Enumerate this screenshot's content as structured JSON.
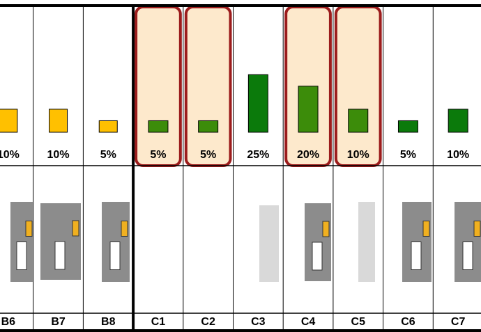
{
  "chart_data": {
    "type": "bar",
    "categories": [
      "B6",
      "B7",
      "B8",
      "C1",
      "C2",
      "C3",
      "C4",
      "C5",
      "C6",
      "C7"
    ],
    "values": [
      10,
      10,
      5,
      5,
      5,
      25,
      20,
      10,
      5,
      10
    ],
    "value_labels": [
      "10%",
      "10%",
      "5%",
      "5%",
      "5%",
      "25%",
      "20%",
      "10%",
      "5%",
      "10%"
    ],
    "colors": [
      "#ffc000",
      "#ffc000",
      "#ffc000",
      "#3c8c0a",
      "#3c8c0a",
      "#0b7a0b",
      "#3c8c0a",
      "#3c8c0a",
      "#0b7a0b",
      "#0b7a0b"
    ],
    "highlight": [
      3,
      4,
      6,
      7
    ],
    "ylim": [
      0,
      55
    ]
  }
}
